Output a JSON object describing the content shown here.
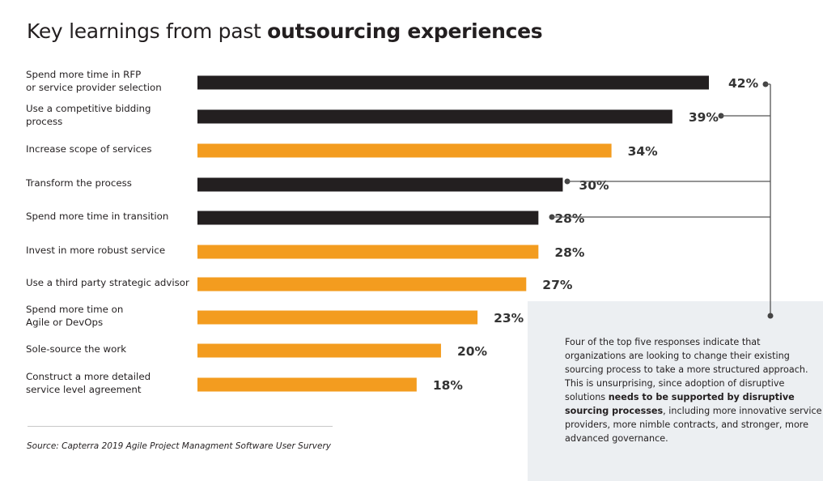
{
  "title": {
    "regular": "Key learnings from past ",
    "bold": "outsourcing experiences"
  },
  "chart_data": {
    "type": "bar",
    "orientation": "horizontal",
    "title": "Key learnings from past outsourcing experiences",
    "xlabel": "",
    "ylabel": "",
    "xlim": [
      0,
      42
    ],
    "grid": false,
    "value_suffix": "%",
    "categories": [
      [
        "Spend more time in RFP",
        "or service provider selection"
      ],
      [
        "Use a competitive bidding",
        "process"
      ],
      [
        "Increase scope of services"
      ],
      [
        "Transform the process"
      ],
      [
        "Spend more time in transition"
      ],
      [
        "Invest in more robust service"
      ],
      [
        "Use a third party strategic advisor"
      ],
      [
        "Spend more time on",
        "Agile or DevOps"
      ],
      [
        "Sole-source the work"
      ],
      [
        "Construct a more detailed",
        "service level agreement"
      ]
    ],
    "values": [
      42,
      39,
      34,
      30,
      28,
      28,
      27,
      23,
      20,
      18
    ],
    "highlighted": [
      true,
      true,
      false,
      true,
      true,
      false,
      false,
      false,
      false,
      false
    ],
    "colors": {
      "highlight": "#231f20",
      "default": "#f39c1f",
      "connector": "#555555"
    },
    "annotation": "Four of the top five responses (dark bars) connect to the note box"
  },
  "note": {
    "part1": "Four of the top five responses indicate that organizations are looking to change their existing sourcing process to take a more structured approach. This is unsurprising, since adoption of disruptive solutions ",
    "bold": "needs to be supported by disruptive sourcing processes",
    "part2": ", including more innovative service providers, more nimble contracts, and stronger, more advanced governance."
  },
  "source": "Source: Capterra 2019 Agile Project Managment Software User Survery"
}
